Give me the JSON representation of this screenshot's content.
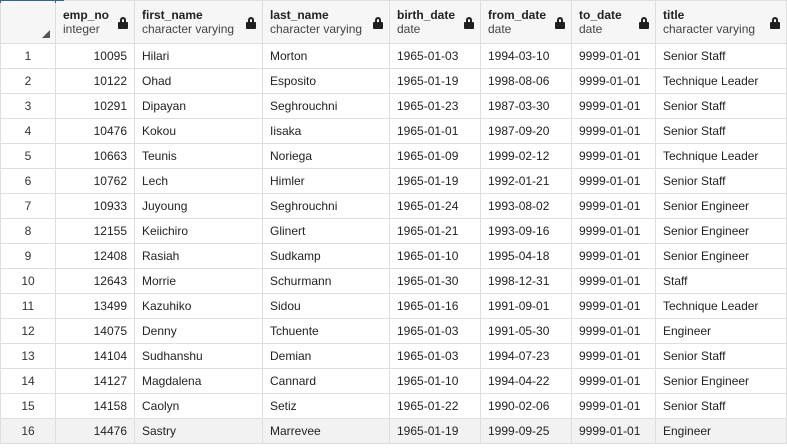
{
  "columns": [
    {
      "name": "emp_no",
      "type": "integer"
    },
    {
      "name": "first_name",
      "type": "character varying"
    },
    {
      "name": "last_name",
      "type": "character varying"
    },
    {
      "name": "birth_date",
      "type": "date"
    },
    {
      "name": "from_date",
      "type": "date"
    },
    {
      "name": "to_date",
      "type": "date"
    },
    {
      "name": "title",
      "type": "character varying"
    }
  ],
  "rows": [
    {
      "n": "1",
      "emp_no": "10095",
      "first_name": "Hilari",
      "last_name": "Morton",
      "birth_date": "1965-01-03",
      "from_date": "1994-03-10",
      "to_date": "9999-01-01",
      "title": "Senior Staff"
    },
    {
      "n": "2",
      "emp_no": "10122",
      "first_name": "Ohad",
      "last_name": "Esposito",
      "birth_date": "1965-01-19",
      "from_date": "1998-08-06",
      "to_date": "9999-01-01",
      "title": "Technique Leader"
    },
    {
      "n": "3",
      "emp_no": "10291",
      "first_name": "Dipayan",
      "last_name": "Seghrouchni",
      "birth_date": "1965-01-23",
      "from_date": "1987-03-30",
      "to_date": "9999-01-01",
      "title": "Senior Staff"
    },
    {
      "n": "4",
      "emp_no": "10476",
      "first_name": "Kokou",
      "last_name": "Iisaka",
      "birth_date": "1965-01-01",
      "from_date": "1987-09-20",
      "to_date": "9999-01-01",
      "title": "Senior Staff"
    },
    {
      "n": "5",
      "emp_no": "10663",
      "first_name": "Teunis",
      "last_name": "Noriega",
      "birth_date": "1965-01-09",
      "from_date": "1999-02-12",
      "to_date": "9999-01-01",
      "title": "Technique Leader"
    },
    {
      "n": "6",
      "emp_no": "10762",
      "first_name": "Lech",
      "last_name": "Himler",
      "birth_date": "1965-01-19",
      "from_date": "1992-01-21",
      "to_date": "9999-01-01",
      "title": "Senior Staff"
    },
    {
      "n": "7",
      "emp_no": "10933",
      "first_name": "Juyoung",
      "last_name": "Seghrouchni",
      "birth_date": "1965-01-24",
      "from_date": "1993-08-02",
      "to_date": "9999-01-01",
      "title": "Senior Engineer"
    },
    {
      "n": "8",
      "emp_no": "12155",
      "first_name": "Keiichiro",
      "last_name": "Glinert",
      "birth_date": "1965-01-21",
      "from_date": "1993-09-16",
      "to_date": "9999-01-01",
      "title": "Senior Engineer"
    },
    {
      "n": "9",
      "emp_no": "12408",
      "first_name": "Rasiah",
      "last_name": "Sudkamp",
      "birth_date": "1965-01-10",
      "from_date": "1995-04-18",
      "to_date": "9999-01-01",
      "title": "Senior Engineer"
    },
    {
      "n": "10",
      "emp_no": "12643",
      "first_name": "Morrie",
      "last_name": "Schurmann",
      "birth_date": "1965-01-30",
      "from_date": "1998-12-31",
      "to_date": "9999-01-01",
      "title": "Staff"
    },
    {
      "n": "11",
      "emp_no": "13499",
      "first_name": "Kazuhiko",
      "last_name": "Sidou",
      "birth_date": "1965-01-16",
      "from_date": "1991-09-01",
      "to_date": "9999-01-01",
      "title": "Technique Leader"
    },
    {
      "n": "12",
      "emp_no": "14075",
      "first_name": "Denny",
      "last_name": "Tchuente",
      "birth_date": "1965-01-03",
      "from_date": "1991-05-30",
      "to_date": "9999-01-01",
      "title": "Engineer"
    },
    {
      "n": "13",
      "emp_no": "14104",
      "first_name": "Sudhanshu",
      "last_name": "Demian",
      "birth_date": "1965-01-03",
      "from_date": "1994-07-23",
      "to_date": "9999-01-01",
      "title": "Senior Staff"
    },
    {
      "n": "14",
      "emp_no": "14127",
      "first_name": "Magdalena",
      "last_name": "Cannard",
      "birth_date": "1965-01-10",
      "from_date": "1994-04-22",
      "to_date": "9999-01-01",
      "title": "Senior Engineer"
    },
    {
      "n": "15",
      "emp_no": "14158",
      "first_name": "Caolyn",
      "last_name": "Setiz",
      "birth_date": "1965-01-22",
      "from_date": "1990-02-06",
      "to_date": "9999-01-01",
      "title": "Senior Staff"
    },
    {
      "n": "16",
      "emp_no": "14476",
      "first_name": "Sastry",
      "last_name": "Marrevee",
      "birth_date": "1965-01-19",
      "from_date": "1999-09-25",
      "to_date": "9999-01-01",
      "title": "Engineer"
    }
  ],
  "icons": {
    "lock": "lock-icon",
    "corner": "sort-triangle-icon"
  },
  "colors": {
    "header_bg": "#f6f6f6",
    "grid": "#dedede",
    "accent": "#326690"
  }
}
